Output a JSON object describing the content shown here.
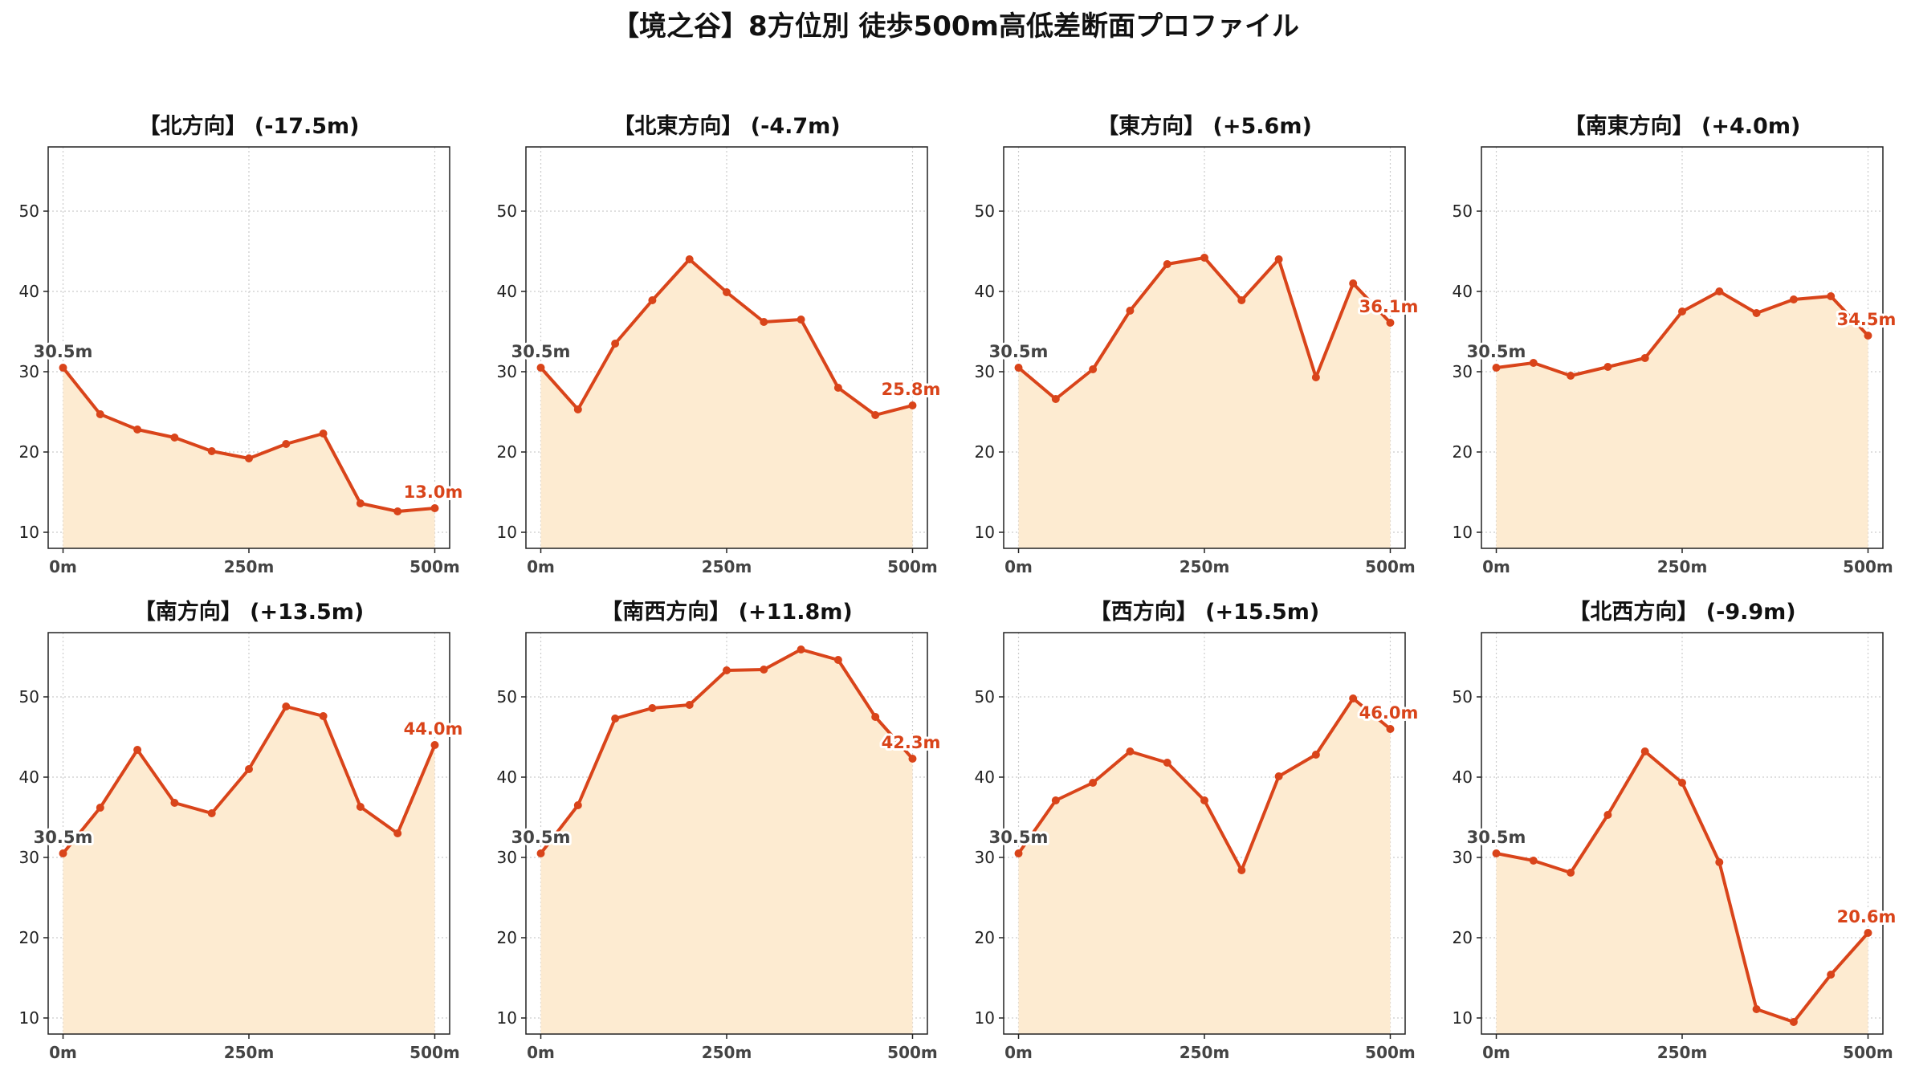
{
  "figure": {
    "title": "【境之谷】8方位別 徒歩500m高低差断面プロファイル"
  },
  "colors": {
    "line": "#d9441a",
    "fill": "#fdebd1",
    "grid": "#cccccc",
    "axis": "#222222",
    "start_label": "#444444",
    "end_label": "#d9441a"
  },
  "chart_data": [
    {
      "type": "area",
      "title": "【北方向】 (-17.5m)",
      "x": [
        0,
        50,
        100,
        150,
        200,
        250,
        300,
        350,
        400,
        450,
        500
      ],
      "values": [
        30.5,
        24.7,
        22.8,
        21.8,
        20.1,
        19.2,
        21.0,
        22.3,
        13.6,
        12.6,
        13.0
      ],
      "start_label": "30.5m",
      "end_label": "13.0m",
      "xticks": [
        "0m",
        "250m",
        "500m"
      ],
      "ylim": [
        8,
        58
      ],
      "yticks": [
        10,
        20,
        30,
        40,
        50
      ],
      "grid": true
    },
    {
      "type": "area",
      "title": "【北東方向】 (-4.7m)",
      "x": [
        0,
        50,
        100,
        150,
        200,
        250,
        300,
        350,
        400,
        450,
        500
      ],
      "values": [
        30.5,
        25.3,
        33.5,
        38.9,
        44.0,
        39.9,
        36.2,
        36.5,
        28.0,
        24.6,
        25.8
      ],
      "start_label": "30.5m",
      "end_label": "25.8m",
      "xticks": [
        "0m",
        "250m",
        "500m"
      ],
      "ylim": [
        8,
        58
      ],
      "yticks": [
        10,
        20,
        30,
        40,
        50
      ],
      "grid": true
    },
    {
      "type": "area",
      "title": "【東方向】 (+5.6m)",
      "x": [
        0,
        50,
        100,
        150,
        200,
        250,
        300,
        350,
        400,
        450,
        500
      ],
      "values": [
        30.5,
        26.6,
        30.3,
        37.6,
        43.4,
        44.2,
        38.9,
        44.0,
        29.3,
        41.0,
        36.1
      ],
      "start_label": "30.5m",
      "end_label": "36.1m",
      "xticks": [
        "0m",
        "250m",
        "500m"
      ],
      "ylim": [
        8,
        58
      ],
      "yticks": [
        10,
        20,
        30,
        40,
        50
      ],
      "grid": true
    },
    {
      "type": "area",
      "title": "【南東方向】 (+4.0m)",
      "x": [
        0,
        50,
        100,
        150,
        200,
        250,
        300,
        350,
        400,
        450,
        500
      ],
      "values": [
        30.5,
        31.1,
        29.5,
        30.6,
        31.7,
        37.5,
        40.0,
        37.3,
        39.0,
        39.4,
        34.5
      ],
      "start_label": "30.5m",
      "end_label": "34.5m",
      "xticks": [
        "0m",
        "250m",
        "500m"
      ],
      "ylim": [
        8,
        58
      ],
      "yticks": [
        10,
        20,
        30,
        40,
        50
      ],
      "grid": true
    },
    {
      "type": "area",
      "title": "【南方向】 (+13.5m)",
      "x": [
        0,
        50,
        100,
        150,
        200,
        250,
        300,
        350,
        400,
        450,
        500
      ],
      "values": [
        30.5,
        36.2,
        43.4,
        36.8,
        35.5,
        41.0,
        48.8,
        47.6,
        36.3,
        33.0,
        44.0
      ],
      "start_label": "30.5m",
      "end_label": "44.0m",
      "xticks": [
        "0m",
        "250m",
        "500m"
      ],
      "ylim": [
        8,
        58
      ],
      "yticks": [
        10,
        20,
        30,
        40,
        50
      ],
      "grid": true
    },
    {
      "type": "area",
      "title": "【南西方向】 (+11.8m)",
      "x": [
        0,
        50,
        100,
        150,
        200,
        250,
        300,
        350,
        400,
        450,
        500
      ],
      "values": [
        30.5,
        36.5,
        47.3,
        48.6,
        49.0,
        53.3,
        53.4,
        55.9,
        54.6,
        47.5,
        42.3
      ],
      "start_label": "30.5m",
      "end_label": "42.3m",
      "xticks": [
        "0m",
        "250m",
        "500m"
      ],
      "ylim": [
        8,
        58
      ],
      "yticks": [
        10,
        20,
        30,
        40,
        50
      ],
      "grid": true
    },
    {
      "type": "area",
      "title": "【西方向】 (+15.5m)",
      "x": [
        0,
        50,
        100,
        150,
        200,
        250,
        300,
        350,
        400,
        450,
        500
      ],
      "values": [
        30.5,
        37.1,
        39.3,
        43.2,
        41.8,
        37.1,
        28.4,
        40.1,
        42.8,
        49.8,
        46.0
      ],
      "start_label": "30.5m",
      "end_label": "46.0m",
      "xticks": [
        "0m",
        "250m",
        "500m"
      ],
      "ylim": [
        8,
        58
      ],
      "yticks": [
        10,
        20,
        30,
        40,
        50
      ],
      "grid": true
    },
    {
      "type": "area",
      "title": "【北西方向】 (-9.9m)",
      "x": [
        0,
        50,
        100,
        150,
        200,
        250,
        300,
        350,
        400,
        450,
        500
      ],
      "values": [
        30.5,
        29.6,
        28.1,
        35.3,
        43.2,
        39.3,
        29.4,
        11.1,
        9.5,
        15.4,
        20.6
      ],
      "start_label": "30.5m",
      "end_label": "20.6m",
      "xticks": [
        "0m",
        "250m",
        "500m"
      ],
      "ylim": [
        8,
        58
      ],
      "yticks": [
        10,
        20,
        30,
        40,
        50
      ],
      "grid": true
    }
  ]
}
